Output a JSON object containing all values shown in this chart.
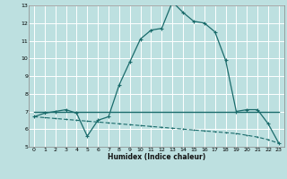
{
  "xlabel": "Humidex (Indice chaleur)",
  "bg_color": "#bde0e0",
  "grid_color": "#ffffff",
  "line_color": "#1a6b6b",
  "xlim": [
    -0.5,
    23.5
  ],
  "ylim": [
    5,
    13
  ],
  "yticks": [
    5,
    6,
    7,
    8,
    9,
    10,
    11,
    12,
    13
  ],
  "xticks": [
    0,
    1,
    2,
    3,
    4,
    5,
    6,
    7,
    8,
    9,
    10,
    11,
    12,
    13,
    14,
    15,
    16,
    17,
    18,
    19,
    20,
    21,
    22,
    23
  ],
  "curve1_x": [
    0,
    1,
    2,
    3,
    4,
    5,
    6,
    7,
    8,
    9,
    10,
    11,
    12,
    13,
    14,
    15,
    16,
    17,
    18,
    19,
    20,
    21,
    22,
    23
  ],
  "curve1_y": [
    6.7,
    6.9,
    7.0,
    7.1,
    6.9,
    5.6,
    6.5,
    6.7,
    8.5,
    9.8,
    11.1,
    11.6,
    11.7,
    13.2,
    12.6,
    12.1,
    12.0,
    11.5,
    9.9,
    7.0,
    7.1,
    7.1,
    6.3,
    5.2
  ],
  "curve2_x": [
    0,
    23
  ],
  "curve2_y": [
    7.0,
    7.0
  ],
  "curve3_x": [
    0,
    1,
    2,
    3,
    4,
    5,
    6,
    7,
    8,
    9,
    10,
    11,
    12,
    13,
    14,
    15,
    16,
    17,
    18,
    19,
    20,
    21,
    22,
    23
  ],
  "curve3_y": [
    6.7,
    6.65,
    6.6,
    6.55,
    6.5,
    6.45,
    6.4,
    6.35,
    6.3,
    6.25,
    6.2,
    6.15,
    6.1,
    6.05,
    6.0,
    5.95,
    5.9,
    5.85,
    5.8,
    5.75,
    5.65,
    5.55,
    5.4,
    5.2
  ]
}
